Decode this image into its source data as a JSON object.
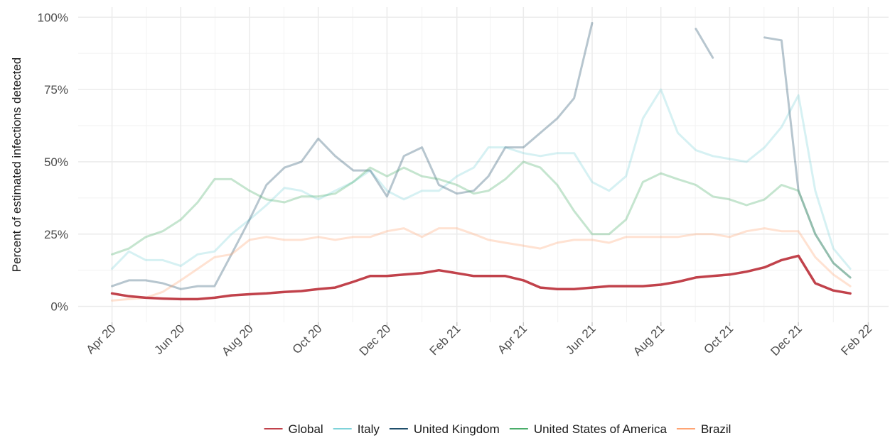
{
  "chart_data": {
    "type": "line",
    "y_axis_label": "Percent of estimated infections detected",
    "x": [
      "2020-04-01",
      "2020-04-16",
      "2020-05-01",
      "2020-05-16",
      "2020-06-01",
      "2020-06-16",
      "2020-07-01",
      "2020-07-16",
      "2020-08-01",
      "2020-08-16",
      "2020-09-01",
      "2020-09-16",
      "2020-10-01",
      "2020-10-16",
      "2020-11-01",
      "2020-11-16",
      "2020-12-01",
      "2020-12-16",
      "2021-01-01",
      "2021-01-16",
      "2021-02-01",
      "2021-02-16",
      "2021-03-01",
      "2021-03-16",
      "2021-04-01",
      "2021-04-16",
      "2021-05-01",
      "2021-05-16",
      "2021-06-01",
      "2021-06-16",
      "2021-07-01",
      "2021-07-16",
      "2021-08-01",
      "2021-08-16",
      "2021-09-01",
      "2021-09-16",
      "2021-10-01",
      "2021-10-16",
      "2021-11-01",
      "2021-11-16",
      "2021-12-01",
      "2021-12-16",
      "2022-01-01",
      "2022-01-16"
    ],
    "series": [
      {
        "name": "Global",
        "color": "#c1424b",
        "values": [
          4.5,
          3.5,
          3,
          2.7,
          2.5,
          2.5,
          3,
          3.8,
          4.2,
          4.5,
          5,
          5.3,
          6,
          6.5,
          8.5,
          10.5,
          10.5,
          11,
          11.5,
          12.5,
          11.5,
          10.5,
          10.5,
          10.5,
          9,
          6.5,
          6,
          6,
          6.5,
          7,
          7,
          7,
          7.5,
          8.5,
          10,
          10.5,
          11,
          12,
          13.5,
          16,
          17.5,
          8,
          5.5,
          4.5
        ]
      },
      {
        "name": "Italy",
        "color": "#7fd3da",
        "values": [
          13,
          19,
          16,
          16,
          14,
          18,
          19,
          25,
          30,
          35,
          41,
          40,
          37,
          40,
          43,
          47,
          40,
          37,
          40,
          40,
          45,
          48,
          55,
          55,
          53,
          52,
          53,
          53,
          43,
          40,
          45,
          65,
          75,
          60,
          54,
          52,
          51,
          50,
          55,
          62,
          73,
          40,
          20,
          13
        ]
      },
      {
        "name": "United Kingdom",
        "color": "#1f4e6b",
        "values": [
          7,
          9,
          9,
          8,
          6,
          7,
          7,
          18,
          30,
          42,
          48,
          50,
          58,
          52,
          47,
          47,
          38,
          52,
          55,
          42,
          39,
          40,
          45,
          55,
          55,
          60,
          65,
          72,
          98,
          null,
          null,
          null,
          98,
          null,
          96,
          86,
          null,
          null,
          93,
          92,
          40,
          25,
          15,
          10
        ]
      },
      {
        "name": "United States of America",
        "color": "#4aad6a",
        "values": [
          18,
          20,
          24,
          26,
          30,
          36,
          44,
          44,
          40,
          37,
          36,
          38,
          38,
          39,
          43,
          48,
          45,
          48,
          45,
          44,
          42,
          39,
          40,
          44,
          50,
          48,
          42,
          33,
          25,
          25,
          30,
          43,
          46,
          44,
          42,
          38,
          37,
          35,
          37,
          42,
          40,
          25,
          15,
          10
        ]
      },
      {
        "name": "Brazil",
        "color": "#ffa474",
        "values": [
          2,
          2.5,
          3,
          5,
          9,
          13,
          17,
          18,
          23,
          24,
          23,
          23,
          24,
          23,
          24,
          24,
          26,
          27,
          24,
          27,
          27,
          25,
          23,
          22,
          21,
          20,
          22,
          23,
          23,
          22,
          24,
          24,
          24,
          24,
          25,
          25,
          24,
          26,
          27,
          26,
          26,
          17,
          11,
          7
        ]
      }
    ],
    "xlim": [
      "2020-03-02",
      "2022-02-19"
    ],
    "xticks": [
      {
        "value": "2020-04-01",
        "label": "Apr 20"
      },
      {
        "value": "2020-06-01",
        "label": "Jun 20"
      },
      {
        "value": "2020-08-01",
        "label": "Aug 20"
      },
      {
        "value": "2020-10-01",
        "label": "Oct 20"
      },
      {
        "value": "2020-12-01",
        "label": "Dec 20"
      },
      {
        "value": "2021-02-01",
        "label": "Feb 21"
      },
      {
        "value": "2021-04-01",
        "label": "Apr 21"
      },
      {
        "value": "2021-06-01",
        "label": "Jun 21"
      },
      {
        "value": "2021-08-01",
        "label": "Aug 21"
      },
      {
        "value": "2021-10-01",
        "label": "Oct 21"
      },
      {
        "value": "2021-12-01",
        "label": "Dec 21"
      },
      {
        "value": "2022-02-01",
        "label": "Feb 22"
      }
    ],
    "ylim": [
      -5.5,
      103.5
    ],
    "yticks": [
      {
        "value": 0,
        "label": "0%"
      },
      {
        "value": 25,
        "label": "25%"
      },
      {
        "value": 50,
        "label": "50%"
      },
      {
        "value": 75,
        "label": "75%"
      },
      {
        "value": 100,
        "label": "100%"
      }
    ],
    "grid": true,
    "legend": "bottom"
  }
}
